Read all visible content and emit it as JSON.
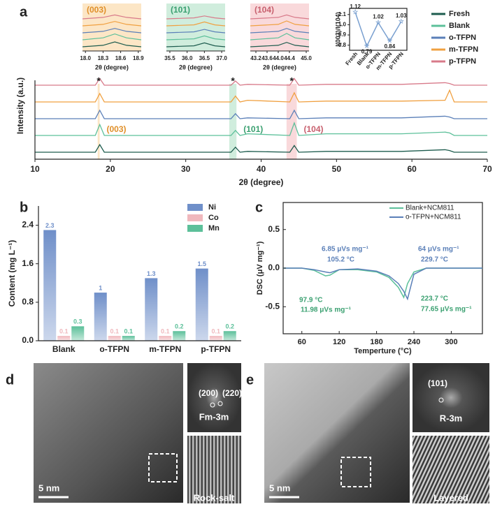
{
  "chart_data": [
    {
      "type": "line",
      "panel": "a",
      "xlabel": "2θ (degree)",
      "ylabel": "Intensity (a.u.)",
      "xlim": [
        10,
        70
      ],
      "xticks": [
        10,
        20,
        30,
        40,
        50,
        60,
        70
      ],
      "x": [
        10,
        18.0,
        18.6,
        19.2,
        36.0,
        36.6,
        37.2,
        38.2,
        43.8,
        44.4,
        45.0,
        48.6,
        58.6,
        64.4,
        65.0,
        65.6,
        70
      ],
      "series": [
        {
          "name": "Fresh",
          "color": "#1d5c4e",
          "values": [
            0,
            0,
            0.9,
            0,
            0,
            0.6,
            0,
            0.1,
            0,
            0.8,
            0,
            0.1,
            0.1,
            0.3,
            0.2,
            0,
            0
          ]
        },
        {
          "name": "Blank",
          "color": "#5cc09a",
          "values": [
            0,
            0,
            1.3,
            0,
            0,
            0.6,
            0,
            0.2,
            0,
            1.5,
            0,
            0.2,
            0.2,
            0.4,
            0.3,
            0,
            0
          ]
        },
        {
          "name": "o-TFPN",
          "color": "#5a7fb8",
          "values": [
            0,
            0,
            1.0,
            0,
            0,
            0.6,
            0,
            0.1,
            0,
            1.0,
            0,
            0.1,
            0.1,
            0.3,
            0.2,
            0,
            0
          ]
        },
        {
          "name": "m-TFPN",
          "color": "#f0a040",
          "values": [
            0,
            0,
            1.0,
            0,
            0,
            0.7,
            0,
            0.2,
            0,
            1.1,
            0,
            0.1,
            0.1,
            0.2,
            1.4,
            0,
            0
          ]
        },
        {
          "name": "p-TFPN",
          "color": "#d87a8a",
          "values": [
            0,
            0,
            0.8,
            0,
            0,
            0.5,
            0,
            0.1,
            0,
            0.8,
            0,
            0.1,
            0.1,
            0.3,
            0.2,
            0,
            0
          ]
        }
      ],
      "annotations": [
        {
          "text": "(003)",
          "color": "#e0902a"
        },
        {
          "text": "(101)",
          "color": "#3aa070"
        },
        {
          "text": "(104)",
          "color": "#c8606e"
        }
      ],
      "markers": [
        "*",
        "*",
        "*"
      ]
    },
    {
      "type": "inset",
      "title": "(003)",
      "color": "#fbe0b8",
      "xlabel": "2θ (degree)",
      "xlim": [
        17.95,
        18.95
      ],
      "xticks": [
        {
          "value": 18.0,
          "label": "18.0"
        },
        18.3,
        18.6,
        18.9
      ],
      "x": [
        17.95,
        18.3,
        18.5,
        18.7,
        18.95
      ],
      "series": [
        {
          "color": "#1d5c4e",
          "values": [
            0,
            0.3,
            1,
            0.3,
            0
          ]
        },
        {
          "color": "#5cc09a",
          "values": [
            0,
            0.4,
            1.2,
            0.4,
            0
          ]
        },
        {
          "color": "#5a7fb8",
          "values": [
            0,
            0.3,
            0.9,
            0.3,
            0
          ]
        },
        {
          "color": "#f0a040",
          "values": [
            0,
            0.3,
            0.9,
            0.3,
            0
          ]
        },
        {
          "color": "#d87a8a",
          "values": [
            0,
            0.3,
            0.8,
            0.3,
            0
          ]
        }
      ]
    },
    {
      "type": "inset",
      "title": "(101)",
      "color": "#c4e8d4",
      "xlabel": "2θ (degree)",
      "xlim": [
        35.4,
        37.1
      ],
      "xticks": [
        35.5,
        {
          "value": 36.0,
          "label": "36.0"
        },
        36.5,
        {
          "value": 37.0,
          "label": "37.0"
        }
      ],
      "x": [
        35.4,
        36.2,
        36.5,
        36.8,
        37.1
      ],
      "series": [
        {
          "color": "#1d5c4e",
          "values": [
            0,
            0.2,
            0.8,
            0.2,
            0
          ]
        },
        {
          "color": "#5cc09a",
          "values": [
            0,
            0.2,
            0.8,
            0.2,
            0
          ]
        },
        {
          "color": "#5a7fb8",
          "values": [
            0,
            0.2,
            0.7,
            0.2,
            0
          ]
        },
        {
          "color": "#f0a040",
          "values": [
            0,
            0.2,
            0.8,
            0.2,
            0
          ]
        },
        {
          "color": "#d87a8a",
          "values": [
            0,
            0.2,
            0.6,
            0.2,
            0
          ]
        }
      ]
    },
    {
      "type": "inset",
      "title": "(104)",
      "color": "#f8cfd2",
      "xlabel": "2θ (degree)",
      "xlim": [
        43.0,
        45.1
      ],
      "xticks": [
        43.2,
        43.6,
        {
          "value": 44.0,
          "label": "44.0"
        },
        44.4,
        {
          "value": 45.0,
          "label": "45.0"
        }
      ],
      "x": [
        43.0,
        44.0,
        44.3,
        44.6,
        45.1
      ],
      "series": [
        {
          "color": "#1d5c4e",
          "values": [
            0,
            0.3,
            0.9,
            0.3,
            0
          ]
        },
        {
          "color": "#5cc09a",
          "values": [
            0,
            0.4,
            1.3,
            0.4,
            0
          ]
        },
        {
          "color": "#5a7fb8",
          "values": [
            0,
            0.3,
            0.9,
            0.3,
            0
          ]
        },
        {
          "color": "#f0a040",
          "values": [
            0,
            0.3,
            1.0,
            0.3,
            0
          ]
        },
        {
          "color": "#d87a8a",
          "values": [
            0,
            0.3,
            0.8,
            0.3,
            0
          ]
        }
      ]
    },
    {
      "type": "ratio",
      "ylabel": "I(003)/I(104)",
      "color": "#7aa0d0",
      "categories": [
        "Fresh",
        "Blank",
        "o-TFPN",
        "m-TFPN",
        "p-TFPN"
      ],
      "values": [
        1.12,
        0.79,
        1.02,
        0.84,
        1.03
      ],
      "ylim": [
        0.75,
        1.16
      ],
      "yticks": [
        0.8,
        0.9,
        {
          "value": 1.0,
          "label": "1.0"
        },
        1.1
      ]
    },
    {
      "type": "bar",
      "panel": "b",
      "ylabel": "Content (mg L⁻¹)",
      "categories": [
        "Blank",
        "o-TFPN",
        "m-TFPN",
        "p-TFPN"
      ],
      "ylim": [
        0,
        2.8
      ],
      "yticks": [
        {
          "value": 0,
          "label": "0.0"
        },
        0.8,
        1.6,
        2.4
      ],
      "series": [
        {
          "name": "Ni",
          "color": "#6f8fc9",
          "values": [
            2.3,
            1,
            1.3,
            1.5
          ]
        },
        {
          "name": "Co",
          "color": "#f0b8bd",
          "values": [
            0.1,
            0.1,
            0.1,
            0.1
          ]
        },
        {
          "name": "Mn",
          "color": "#5cc09a",
          "values": [
            0.3,
            0.1,
            0.2,
            0.2
          ]
        }
      ]
    },
    {
      "type": "dsc",
      "panel": "c",
      "xlabel": "Temperture (°C)",
      "ylabel": "DSC (μV mg⁻¹)",
      "xlim": [
        30,
        350
      ],
      "xticks": [
        60,
        120,
        180,
        240,
        300
      ],
      "ylim": [
        -0.85,
        0.85
      ],
      "yticks": [
        -0.5,
        {
          "value": 0,
          "label": "0.0"
        },
        0.5
      ],
      "x": [
        30,
        60,
        80,
        97.9,
        105.2,
        120,
        150,
        180,
        200,
        215,
        223.7,
        229.7,
        240,
        260,
        300,
        350
      ],
      "series": [
        {
          "name": "Blank+NCM811",
          "color": "#5cc09a",
          "values": [
            0,
            0,
            -0.03,
            -0.1,
            -0.09,
            -0.02,
            -0.02,
            -0.05,
            -0.12,
            -0.25,
            -0.38,
            -0.2,
            -0.05,
            0,
            0,
            0
          ]
        },
        {
          "name": "o-TFPN+NCM811",
          "color": "#5a7fb8",
          "values": [
            0,
            0,
            -0.02,
            -0.05,
            -0.06,
            -0.02,
            -0.01,
            -0.04,
            -0.1,
            -0.2,
            -0.3,
            -0.4,
            -0.08,
            0,
            0,
            0
          ]
        }
      ],
      "annotations": [
        {
          "text": "6.85 μVs mg⁻¹",
          "color": "#5a7fb8"
        },
        {
          "text": "105.2 °C",
          "color": "#5a7fb8"
        },
        {
          "text": "97.9 °C",
          "color": "#3aa070"
        },
        {
          "text": "11.98 μVs mg⁻¹",
          "color": "#3aa070"
        },
        {
          "text": "64 μVs mg⁻¹",
          "color": "#5a7fb8"
        },
        {
          "text": "229.7 °C",
          "color": "#5a7fb8"
        },
        {
          "text": "223.7 °C",
          "color": "#3aa070"
        },
        {
          "text": "77.65 μVs mg⁻¹",
          "color": "#3aa070"
        }
      ]
    }
  ],
  "images": [
    {
      "panel": "d",
      "scale": "5 nm",
      "fft_labels": [
        "(200)",
        "(220)"
      ],
      "phase": "Fm-3m",
      "structure": "Rock-salt"
    },
    {
      "panel": "e",
      "scale": "5 nm",
      "fft_labels": [
        "(101)"
      ],
      "phase": "R-3m",
      "structure": "Layered"
    }
  ]
}
